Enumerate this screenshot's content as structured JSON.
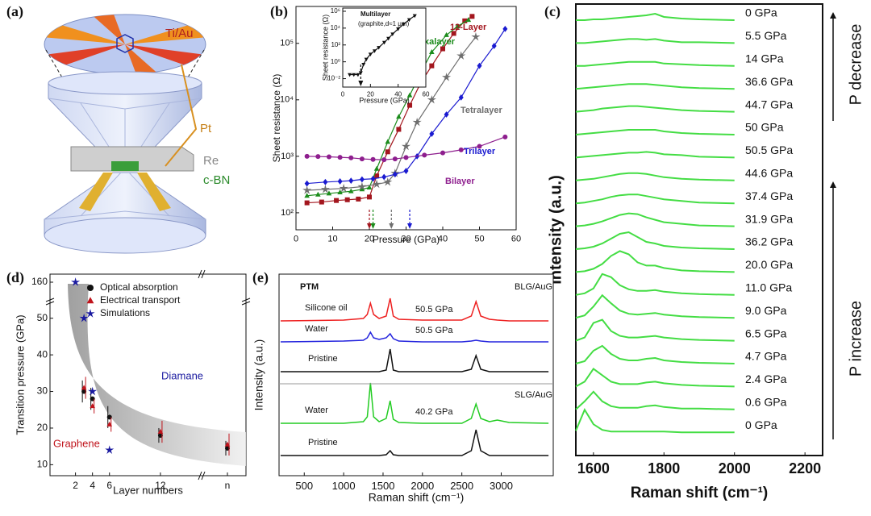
{
  "diagram": {
    "label": "(a)",
    "parts": [
      "Ti/Au",
      "Pt",
      "Re",
      "c-BN"
    ]
  },
  "chart_data": [
    {
      "label": "(b)",
      "type": "scatter",
      "xlabel": "Pressure (GPa)",
      "ylabel": "Sheet resistance (Ω)",
      "xlim": [
        0,
        60
      ],
      "xticks": [
        0,
        10,
        20,
        30,
        40,
        50,
        60
      ],
      "ylog": true,
      "ylim": [
        50,
        450000
      ],
      "yticks": [
        {
          "value": 100,
          "label": "10²"
        },
        {
          "value": 1000,
          "label": "10³"
        },
        {
          "value": 10000,
          "label": "10⁴"
        },
        {
          "value": 100000,
          "label": "10⁵"
        }
      ],
      "series": [
        {
          "name": "12-Layer",
          "color": "#a3161e",
          "marker": "square",
          "x": [
            3,
            7,
            11,
            14,
            17,
            20,
            22,
            25,
            28,
            31,
            34,
            37,
            40,
            43,
            46,
            48
          ],
          "values": [
            150,
            155,
            165,
            170,
            175,
            190,
            450,
            1200,
            3000,
            8000,
            20000,
            40000,
            80000,
            150000,
            250000,
            300000
          ]
        },
        {
          "name": "Hexalayer",
          "color": "#1c8c1c",
          "marker": "triangle",
          "x": [
            3,
            6,
            9,
            12,
            15,
            18,
            20,
            22,
            25,
            28,
            31,
            34,
            37,
            41,
            44,
            47
          ],
          "values": [
            200,
            210,
            220,
            230,
            240,
            260,
            280,
            600,
            1800,
            5000,
            12000,
            30000,
            70000,
            140000,
            200000,
            260000
          ]
        },
        {
          "name": "Tetralayer",
          "color": "#6e6e6e",
          "marker": "star",
          "x": [
            3,
            8,
            13,
            18,
            22,
            25,
            27,
            30,
            33,
            37,
            41,
            45,
            49
          ],
          "values": [
            250,
            260,
            270,
            290,
            320,
            350,
            500,
            1500,
            4000,
            10000,
            25000,
            60000,
            130000
          ]
        },
        {
          "name": "Trilayer",
          "color": "#1a1ad0",
          "marker": "diamond",
          "x": [
            3,
            8,
            12,
            15,
            18,
            21,
            24,
            27,
            30,
            33,
            37,
            41,
            45,
            50,
            54,
            57
          ],
          "values": [
            330,
            350,
            360,
            370,
            390,
            400,
            430,
            480,
            550,
            1000,
            2500,
            5500,
            11000,
            40000,
            90000,
            180000
          ]
        },
        {
          "name": "Bilayer",
          "color": "#8e1e8e",
          "marker": "circle",
          "x": [
            3,
            6,
            9,
            12,
            15,
            18,
            21,
            24,
            27,
            30,
            35,
            40,
            45,
            50,
            57
          ],
          "values": [
            1000,
            990,
            980,
            960,
            940,
            900,
            880,
            870,
            900,
            950,
            1050,
            1150,
            1300,
            1500,
            2200
          ]
        }
      ],
      "arrows": [
        {
          "x": 20,
          "color": "#a3161e"
        },
        {
          "x": 21,
          "color": "#1c8c1c"
        },
        {
          "x": 26,
          "color": "#6e6e6e"
        },
        {
          "x": 31,
          "color": "#1a1ad0"
        }
      ]
    },
    {
      "type": "scatter",
      "title": "Multilayer",
      "subtitle": "(graphite,d≈1 μm)",
      "xlabel": "Pressure (GPa)",
      "ylabel": "Sheet resistance (Ω)",
      "xlim": [
        0,
        60
      ],
      "xticks": [
        0,
        20,
        40,
        60
      ],
      "ylog": true,
      "ylim": [
        0.001,
        2400000
      ],
      "yticks": [
        {
          "value": 0.01,
          "label": "10⁻²"
        },
        {
          "value": 1,
          "label": "10⁰"
        },
        {
          "value": 100,
          "label": "10²"
        },
        {
          "value": 10000,
          "label": "10⁴"
        },
        {
          "value": 1000000,
          "label": "10⁶"
        }
      ],
      "series": [
        {
          "color": "#111111",
          "marker": "triangle-down",
          "x": [
            5,
            8,
            11,
            13,
            15,
            17,
            20,
            23,
            26,
            30,
            33,
            36,
            40,
            44,
            48,
            52
          ],
          "values": [
            0.03,
            0.03,
            0.03,
            0.05,
            0.5,
            2,
            8,
            20,
            50,
            200,
            600,
            2000,
            8000,
            30000,
            100000,
            300000
          ]
        }
      ],
      "arrows": [
        {
          "x": 13,
          "color": "#111111"
        }
      ]
    },
    {
      "label": "(c)",
      "type": "spectra",
      "xlabel": "Raman shift (cm⁻¹)",
      "ylabel": "Intensity (a.u.)",
      "xlim": [
        1550,
        2250
      ],
      "xticks": [
        1600,
        1800,
        2000,
        2200
      ],
      "x": [
        1550,
        1575,
        1600,
        1625,
        1650,
        1675,
        1700,
        1725,
        1750,
        1775,
        1800,
        1850,
        1900,
        2000
      ],
      "annotations": [
        "P decrease",
        "P increase"
      ],
      "series": [
        {
          "name": "0 GPa",
          "color": "#44dd44",
          "values": [
            0,
            0,
            1,
            1,
            2,
            3,
            4,
            5,
            6,
            8,
            4,
            2,
            1,
            0
          ]
        },
        {
          "name": "5.5 GPa",
          "color": "#44dd44",
          "values": [
            0,
            0,
            1,
            2,
            3,
            4,
            5,
            5,
            4,
            5,
            3,
            1,
            1,
            0
          ]
        },
        {
          "name": "14 GPa",
          "color": "#44dd44",
          "values": [
            0,
            0,
            1,
            2,
            3,
            4,
            5,
            5,
            5,
            5,
            3,
            2,
            1,
            0
          ]
        },
        {
          "name": "36.6 GPa",
          "color": "#44dd44",
          "values": [
            0,
            1,
            2,
            3,
            4,
            5,
            6,
            6,
            6,
            5,
            4,
            2,
            1,
            0
          ]
        },
        {
          "name": "44.7 GPa",
          "color": "#44dd44",
          "values": [
            0,
            1,
            2,
            4,
            5,
            6,
            7,
            7,
            6,
            5,
            4,
            2,
            1,
            0
          ]
        },
        {
          "name": "50 GPa",
          "color": "#44dd44",
          "values": [
            0,
            1,
            2,
            3,
            4,
            5,
            6,
            6,
            6,
            6,
            4,
            2,
            1,
            0
          ]
        },
        {
          "name": "50.5 GPa",
          "color": "#44dd44",
          "values": [
            0,
            1,
            2,
            3,
            4,
            5,
            6,
            6,
            7,
            6,
            4,
            3,
            1,
            0
          ]
        },
        {
          "name": "44.6 GPa",
          "color": "#44dd44",
          "values": [
            0,
            1,
            2,
            4,
            6,
            8,
            9,
            9,
            8,
            6,
            4,
            2,
            1,
            0
          ]
        },
        {
          "name": "37.4 GPa",
          "color": "#44dd44",
          "values": [
            0,
            1,
            3,
            5,
            8,
            10,
            11,
            11,
            9,
            7,
            5,
            3,
            1,
            0
          ]
        },
        {
          "name": "31.9 GPa",
          "color": "#44dd44",
          "values": [
            0,
            1,
            3,
            6,
            10,
            14,
            16,
            15,
            11,
            8,
            5,
            3,
            1,
            0
          ]
        },
        {
          "name": "36.2 GPa",
          "color": "#44dd44",
          "values": [
            0,
            1,
            3,
            7,
            13,
            19,
            21,
            15,
            9,
            7,
            4,
            2,
            1,
            0
          ]
        },
        {
          "name": "20.0 GPa",
          "color": "#44dd44",
          "values": [
            0,
            1,
            4,
            10,
            20,
            26,
            22,
            12,
            8,
            8,
            5,
            2,
            1,
            0
          ]
        },
        {
          "name": "11.0 GPa",
          "color": "#44dd44",
          "values": [
            0,
            2,
            8,
            26,
            22,
            12,
            7,
            5,
            5,
            6,
            4,
            2,
            1,
            0
          ]
        },
        {
          "name": "9.0 GPa",
          "color": "#44dd44",
          "values": [
            0,
            3,
            14,
            28,
            18,
            9,
            5,
            4,
            5,
            6,
            4,
            2,
            1,
            0
          ]
        },
        {
          "name": "6.5 GPa",
          "color": "#44dd44",
          "values": [
            0,
            4,
            22,
            26,
            12,
            6,
            4,
            4,
            5,
            6,
            4,
            2,
            1,
            0
          ]
        },
        {
          "name": "4.7 GPa",
          "color": "#44dd44",
          "values": [
            0,
            3,
            16,
            22,
            12,
            6,
            4,
            4,
            6,
            7,
            4,
            2,
            1,
            0
          ]
        },
        {
          "name": "2.4 GPa",
          "color": "#44dd44",
          "values": [
            0,
            6,
            22,
            14,
            6,
            3,
            3,
            3,
            5,
            6,
            4,
            2,
            1,
            0
          ]
        },
        {
          "name": "0.6 GPa",
          "color": "#44dd44",
          "values": [
            0,
            10,
            22,
            10,
            4,
            2,
            2,
            2,
            4,
            5,
            3,
            1,
            1,
            0
          ]
        },
        {
          "name": "0 GPa",
          "color": "#44dd44",
          "values": [
            2,
            28,
            10,
            3,
            1,
            1,
            1,
            1,
            1,
            1,
            1,
            0,
            0,
            0
          ]
        }
      ]
    },
    {
      "label": "(d)",
      "type": "scatter",
      "xlabel": "Layer numbers",
      "ylabel": "Transition pressure (GPa)",
      "xlim": [
        -1,
        14
      ],
      "xticks": [
        2,
        4,
        6,
        12,
        "n"
      ],
      "ylim": [
        7,
        165
      ],
      "ybreak": [
        55,
        150
      ],
      "yticks": [
        10,
        20,
        30,
        40,
        50,
        160
      ],
      "annotations": [
        "Diamane",
        "Graphene"
      ],
      "series": [
        {
          "name": "Optical absorption",
          "color": "#111111",
          "marker": "circle",
          "x": [
            3,
            4,
            6,
            12,
            "n"
          ],
          "values": [
            30,
            28,
            23,
            18,
            14.5
          ],
          "errors": [
            3,
            3,
            3,
            2,
            2
          ]
        },
        {
          "name": "Electrical transport",
          "color": "#c0141c",
          "marker": "triangle",
          "x": [
            3,
            4,
            6,
            12,
            "n"
          ],
          "values": [
            31,
            26,
            21,
            19,
            15.5
          ],
          "errors": [
            3,
            2,
            2,
            3,
            3
          ]
        },
        {
          "name": "Simulations",
          "color": "#1a1aa0",
          "marker": "star",
          "x": [
            2,
            3,
            4,
            6
          ],
          "values": [
            160,
            50,
            30,
            14
          ]
        }
      ]
    },
    {
      "label": "(e)",
      "type": "spectra",
      "xlabel": "Raman shift (cm⁻¹)",
      "ylabel": "Intensity (a.u.)",
      "xlim": [
        180,
        3660
      ],
      "xticks": [
        500,
        1000,
        1500,
        2000,
        2500,
        3000
      ],
      "annotations": [
        "PTM",
        "BLG/AuG",
        "SLG/AuG"
      ],
      "x": [
        200,
        1000,
        1250,
        1300,
        1340,
        1380,
        1450,
        1540,
        1590,
        1630,
        1700,
        2000,
        2500,
        2620,
        2680,
        2740,
        2850,
        2950,
        3100,
        3600
      ],
      "series": [
        {
          "name": "Silicone oil",
          "pressure": "50.5 GPa",
          "color": "#ee2020",
          "values": [
            0,
            1,
            3,
            8,
            22,
            8,
            3,
            6,
            28,
            6,
            2,
            1,
            1,
            6,
            24,
            6,
            2,
            1,
            0,
            0
          ]
        },
        {
          "name": "Water",
          "pressure": "50.5 GPa",
          "color": "#2222dd",
          "values": [
            0,
            1,
            2,
            5,
            12,
            5,
            3,
            5,
            10,
            4,
            1,
            0,
            0,
            1,
            2,
            1,
            0,
            0,
            0,
            0
          ]
        },
        {
          "name": "Pristine",
          "color": "#111111",
          "values": [
            0,
            0,
            0,
            0,
            0,
            0,
            0,
            2,
            28,
            2,
            0,
            0,
            0,
            3,
            20,
            3,
            0,
            0,
            0,
            0
          ]
        },
        {
          "name": "Water",
          "pressure": "40.2 GPa",
          "color": "#22cc22",
          "values": [
            0,
            0,
            2,
            8,
            50,
            8,
            2,
            6,
            28,
            5,
            1,
            0,
            0,
            6,
            24,
            6,
            2,
            4,
            1,
            0
          ]
        },
        {
          "name": "Pristine",
          "color": "#111111",
          "values": [
            0,
            0,
            0,
            0,
            0,
            0,
            0,
            1,
            6,
            1,
            0,
            0,
            0,
            6,
            32,
            6,
            0,
            0,
            0,
            0
          ]
        }
      ]
    }
  ]
}
